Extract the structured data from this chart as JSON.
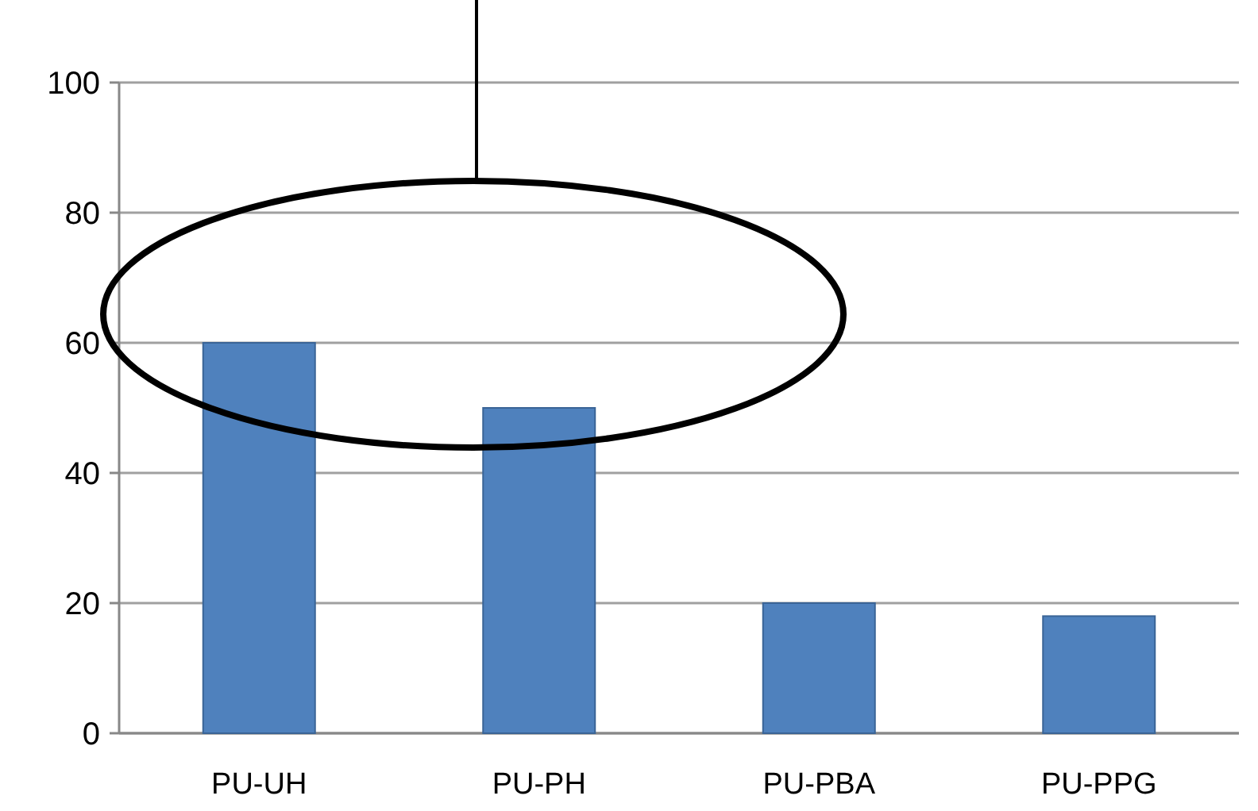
{
  "chart_data": {
    "type": "bar",
    "categories": [
      "PU-UH",
      "PU-PH",
      "PU-PBA",
      "PU-PPG"
    ],
    "values": [
      60,
      50,
      20,
      18
    ],
    "color": "#4f81bd",
    "ylim": [
      0,
      100
    ],
    "yticks": [
      0,
      20,
      40,
      60,
      80,
      100
    ],
    "grid": "y"
  }
}
